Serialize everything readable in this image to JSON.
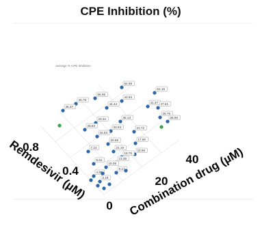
{
  "chart_data": {
    "type": "scatter",
    "title": "CPE Inhibition (%)",
    "subtitle": "average % CPE Inhibition",
    "xlabel": "Combination drug (µM)",
    "ylabel": "Remdesivir (µM)",
    "x_ticks": [
      "0",
      "20",
      "40"
    ],
    "y_ticks": [
      "0.4",
      "0.8"
    ],
    "colors": {
      "point": "#2b66a8",
      "highlight": "#3aa34a",
      "grid": "#e2e2e2"
    },
    "points": [
      {
        "label": "54.98",
        "color": "blue"
      },
      {
        "label": "61.16",
        "color": "blue"
      },
      {
        "label": "56.95",
        "color": "blue"
      },
      {
        "label": "40.79",
        "color": "blue"
      },
      {
        "label": "36.37",
        "color": "blue"
      },
      {
        "label": "",
        "color": "green"
      },
      {
        "label": "43.94",
        "color": "blue"
      },
      {
        "label": "44.44",
        "color": "blue"
      },
      {
        "label": "41.37",
        "color": "blue"
      },
      {
        "label": "47.61",
        "color": "blue"
      },
      {
        "label": "26.76",
        "color": "blue"
      },
      {
        "label": "26.90",
        "color": "blue"
      },
      {
        "label": "",
        "color": "green"
      },
      {
        "label": "35.13",
        "color": "blue"
      },
      {
        "label": "23.42",
        "color": "blue"
      },
      {
        "label": "29.63",
        "color": "blue"
      },
      {
        "label": "33.04",
        "color": "blue"
      },
      {
        "label": "21.72",
        "color": "blue"
      },
      {
        "label": "16.53",
        "color": "blue"
      },
      {
        "label": "17.90",
        "color": "blue"
      },
      {
        "label": "20.59",
        "color": "blue"
      },
      {
        "label": "7.13",
        "color": "blue"
      },
      {
        "label": "21.19",
        "color": "blue"
      },
      {
        "label": "23.86",
        "color": "blue"
      },
      {
        "label": "19.76",
        "color": "blue"
      },
      {
        "label": "13.36",
        "color": "blue"
      },
      {
        "label": "5.61",
        "color": "blue"
      },
      {
        "label": "15.08",
        "color": "blue"
      },
      {
        "label": "9.17",
        "color": "blue"
      },
      {
        "label": "4.85",
        "color": "blue"
      },
      {
        "label": "2.18",
        "color": "blue"
      },
      {
        "label": "",
        "color": "blue"
      },
      {
        "label": "",
        "color": "blue"
      },
      {
        "label": "",
        "color": "blue"
      },
      {
        "label": "",
        "color": "blue"
      },
      {
        "label": "",
        "color": "blue"
      },
      {
        "label": "",
        "color": "blue"
      }
    ]
  }
}
